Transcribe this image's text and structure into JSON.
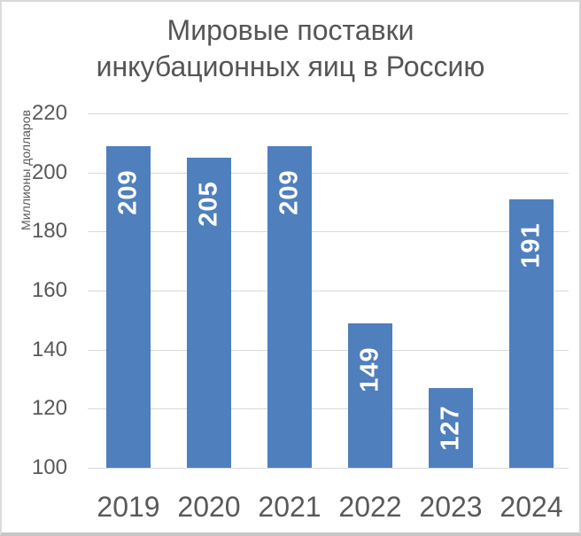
{
  "chart_data": {
    "type": "bar",
    "title": "Мировые поставки инкубационных яиц в Россию",
    "title_lines": [
      "Мировые поставки",
      "инкубационных яиц в Россию"
    ],
    "ylabel": "Миллионы долларов",
    "xlabel": "",
    "categories": [
      "2019",
      "2020",
      "2021",
      "2022",
      "2023",
      "2024"
    ],
    "values": [
      209,
      205,
      209,
      149,
      127,
      191
    ],
    "value_labels": [
      "209",
      "205",
      "209",
      "149",
      "127",
      "191"
    ],
    "yticks": [
      100,
      120,
      140,
      160,
      180,
      200,
      220
    ],
    "ytick_labels": [
      "100",
      "120",
      "140",
      "160",
      "180",
      "200",
      "220"
    ],
    "ylim": [
      100,
      220
    ],
    "grid": true,
    "legend": false,
    "value_label_rotation": -90,
    "value_label_position": "inside-end",
    "colors": {
      "bar": "#4f7fbd",
      "value_label": "#ffffff",
      "text": "#595959",
      "title": "#555555",
      "gridline": "#d9d9d9",
      "frame": "#d9d9d9"
    }
  }
}
